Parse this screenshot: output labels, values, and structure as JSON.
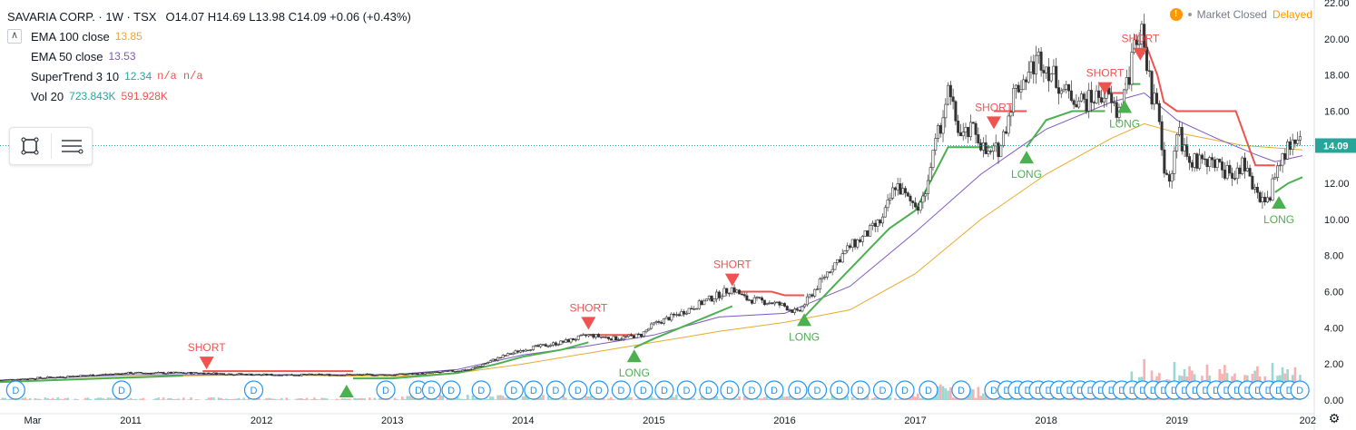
{
  "header": {
    "symbol": "SAVARIA CORP. · 1W · TSX",
    "ohlc": "O14.07  H14.69  L13.98  C14.09  +0.06 (+0.43%)"
  },
  "status": {
    "market": "Market Closed",
    "delayed": "Delayed",
    "warn": "!"
  },
  "legend": [
    {
      "name": "EMA 100 close",
      "value": "13.85",
      "color": "#e9a92f"
    },
    {
      "name": "EMA 50 close",
      "value": "13.53",
      "color": "#7e57c2"
    },
    {
      "name": "SuperTrend 3 10",
      "value": "12.34",
      "extra": "n/a  n/a",
      "color": "#26a69a",
      "extra_color": "#ef5350"
    },
    {
      "name": "Vol 20",
      "value": "723.843K",
      "extra": "591.928K",
      "color": "#26a69a",
      "extra_color": "#ef5350"
    }
  ],
  "legend_collapse": "∧",
  "chart_data": {
    "type": "line",
    "ylim": [
      0,
      22
    ],
    "y_ticks": [
      "22.00",
      "20.00",
      "18.00",
      "16.00",
      "14.00",
      "12.00",
      "10.00",
      "8.00",
      "6.00",
      "4.00",
      "2.00",
      "0.00"
    ],
    "y_tick_values": [
      22,
      20,
      18,
      16,
      14,
      12,
      10,
      8,
      6,
      4,
      2,
      0
    ],
    "x_ticks": [
      "Mar",
      "2011",
      "2012",
      "2013",
      "2014",
      "2015",
      "2016",
      "2017",
      "2018",
      "2019",
      "202"
    ],
    "x_tick_values": [
      2010.25,
      2011,
      2012,
      2013,
      2014,
      2015,
      2016,
      2017,
      2018,
      2019,
      2020
    ],
    "xlim": [
      2010.0,
      2020.05
    ],
    "last_price": "14.09",
    "last_value": 14.09,
    "series": [
      {
        "key": "price",
        "color": "#26a69a",
        "x": [
          2010.0,
          2010.5,
          2011.0,
          2011.5,
          2012.0,
          2012.5,
          2013.0,
          2013.3,
          2013.6,
          2013.8,
          2014.0,
          2014.3,
          2014.5,
          2014.7,
          2014.9,
          2015.0,
          2015.2,
          2015.4,
          2015.6,
          2015.7,
          2015.9,
          2016.0,
          2016.1,
          2016.2,
          2016.35,
          2016.5,
          2016.6,
          2016.75,
          2016.85,
          2016.95,
          2017.05,
          2017.15,
          2017.25,
          2017.35,
          2017.45,
          2017.55,
          2017.65,
          2017.75,
          2017.85,
          2017.95,
          2018.05,
          2018.15,
          2018.3,
          2018.45,
          2018.55,
          2018.65,
          2018.7,
          2018.75,
          2018.8,
          2018.85,
          2018.9,
          2018.95,
          2019.0,
          2019.1,
          2019.2,
          2019.3,
          2019.4,
          2019.5,
          2019.6,
          2019.7,
          2019.75,
          2019.85,
          2019.9,
          2019.96
        ],
        "y": [
          1.1,
          1.3,
          1.5,
          1.5,
          1.4,
          1.4,
          1.4,
          1.5,
          1.7,
          2.3,
          2.8,
          3.2,
          3.6,
          3.4,
          3.6,
          4.2,
          4.8,
          5.5,
          6.2,
          5.6,
          5.4,
          5.2,
          4.8,
          5.8,
          7.3,
          8.5,
          9.0,
          10.0,
          12.0,
          11.0,
          10.8,
          14.0,
          17.0,
          14.5,
          15.0,
          13.5,
          14.0,
          17.0,
          18.0,
          19.0,
          18.0,
          17.0,
          16.5,
          17.0,
          15.8,
          18.5,
          20.5,
          20.0,
          17.0,
          16.0,
          12.5,
          12.0,
          15.0,
          13.0,
          13.5,
          13.0,
          12.5,
          13.0,
          11.5,
          11.0,
          12.5,
          14.0,
          14.5,
          14.1
        ]
      },
      {
        "key": "ema100",
        "color": "#e9a92f",
        "x": [
          2010.0,
          2011.0,
          2012.0,
          2013.0,
          2013.5,
          2014.0,
          2014.5,
          2015.0,
          2015.5,
          2016.0,
          2016.5,
          2017.0,
          2017.5,
          2018.0,
          2018.5,
          2018.75,
          2019.0,
          2019.5,
          2019.96
        ],
        "y": [
          1.0,
          1.3,
          1.4,
          1.3,
          1.5,
          2.0,
          2.6,
          3.2,
          3.8,
          4.3,
          5.0,
          7.0,
          10.0,
          12.5,
          14.5,
          15.3,
          14.8,
          14.1,
          13.85
        ]
      },
      {
        "key": "ema50",
        "color": "#7e57c2",
        "x": [
          2010.0,
          2011.0,
          2012.0,
          2013.0,
          2013.5,
          2014.0,
          2014.5,
          2015.0,
          2015.5,
          2016.0,
          2016.5,
          2017.0,
          2017.5,
          2018.0,
          2018.5,
          2018.75,
          2019.0,
          2019.3,
          2019.6,
          2019.75,
          2019.96
        ],
        "y": [
          1.1,
          1.4,
          1.4,
          1.4,
          1.7,
          2.5,
          3.0,
          3.6,
          4.6,
          4.8,
          6.3,
          9.3,
          12.5,
          15.0,
          16.5,
          17.0,
          15.5,
          14.5,
          13.6,
          13.2,
          13.53
        ]
      },
      {
        "key": "st_up1",
        "color": "#4caf50",
        "x": [
          2010.0,
          2011.4,
          2011.4
        ],
        "y": [
          1.0,
          1.35,
          1.35
        ]
      },
      {
        "key": "st_dn1",
        "color": "#ef5350",
        "x": [
          2011.55,
          2012.7
        ],
        "y": [
          1.6,
          1.6
        ]
      },
      {
        "key": "st_up2",
        "color": "#4caf50",
        "x": [
          2012.7,
          2013.0,
          2013.5,
          2013.8,
          2014.0,
          2014.3,
          2014.5
        ],
        "y": [
          1.2,
          1.2,
          1.5,
          2.0,
          2.4,
          2.8,
          3.2
        ]
      },
      {
        "key": "st_dn2",
        "color": "#ef5350",
        "x": [
          2014.5,
          2014.85
        ],
        "y": [
          3.6,
          3.6
        ]
      },
      {
        "key": "st_up3",
        "color": "#4caf50",
        "x": [
          2014.85,
          2015.0,
          2015.2,
          2015.4,
          2015.6
        ],
        "y": [
          2.9,
          3.4,
          4.0,
          4.6,
          5.2
        ]
      },
      {
        "key": "st_dn3",
        "color": "#ef5350",
        "x": [
          2015.6,
          2015.9,
          2016.0,
          2016.15
        ],
        "y": [
          6.0,
          6.0,
          5.8,
          5.8
        ]
      },
      {
        "key": "st_up4",
        "color": "#4caf50",
        "x": [
          2016.15,
          2016.4,
          2016.6,
          2016.8,
          2017.0,
          2017.25,
          2017.5,
          2017.6
        ],
        "y": [
          4.6,
          6.5,
          8.0,
          9.5,
          10.5,
          14.0,
          14.0,
          14.0
        ]
      },
      {
        "key": "st_dn4",
        "color": "#ef5350",
        "x": [
          2017.6,
          2017.85
        ],
        "y": [
          16.0,
          16.0
        ]
      },
      {
        "key": "st_up5",
        "color": "#4caf50",
        "x": [
          2017.85,
          2018.0,
          2018.2,
          2018.45
        ],
        "y": [
          14.0,
          15.5,
          16.0,
          16.0
        ]
      },
      {
        "key": "st_dn5",
        "color": "#ef5350",
        "x": [
          2018.45,
          2018.6
        ],
        "y": [
          17.0,
          17.0
        ]
      },
      {
        "key": "st_up6",
        "color": "#4caf50",
        "x": [
          2018.6,
          2018.72
        ],
        "y": [
          17.5,
          17.5
        ]
      },
      {
        "key": "st_dn6",
        "color": "#ef5350",
        "x": [
          2018.72,
          2018.85,
          2018.9,
          2019.0,
          2019.3,
          2019.45,
          2019.6,
          2019.75
        ],
        "y": [
          20.5,
          18.0,
          16.5,
          16.0,
          16.0,
          16.0,
          13.0,
          13.0
        ]
      },
      {
        "key": "st_up7",
        "color": "#4caf50",
        "x": [
          2019.75,
          2019.85,
          2019.96
        ],
        "y": [
          11.5,
          12.0,
          12.34
        ]
      }
    ],
    "signals": [
      {
        "label": "SHORT",
        "kind": "short",
        "x": 2011.58,
        "y": 2.0
      },
      {
        "label": "SHORT",
        "kind": "short",
        "x": 2014.5,
        "y": 4.2
      },
      {
        "label": "LONG",
        "kind": "long",
        "x": 2014.85,
        "y": 2.5
      },
      {
        "label": "SHORT",
        "kind": "short",
        "x": 2015.6,
        "y": 6.6
      },
      {
        "label": "LONG",
        "kind": "long",
        "x": 2016.15,
        "y": 4.5
      },
      {
        "label": "SHORT",
        "kind": "short",
        "x": 2017.6,
        "y": 15.3
      },
      {
        "label": "LONG",
        "kind": "long",
        "x": 2017.85,
        "y": 13.5
      },
      {
        "label": "SHORT",
        "kind": "short",
        "x": 2018.45,
        "y": 17.2
      },
      {
        "label": "LONG",
        "kind": "long",
        "x": 2018.6,
        "y": 16.3
      },
      {
        "label": "SHORT",
        "kind": "short",
        "x": 2018.72,
        "y": 19.1
      },
      {
        "label": "LONG",
        "kind": "long",
        "x": 2019.78,
        "y": 11.0
      }
    ],
    "plain_long": [
      {
        "x": 2012.65
      }
    ],
    "dividend_marker": "D",
    "dividend_x": [
      2010.12,
      2010.93,
      2011.94,
      2012.95,
      2013.2,
      2013.3,
      2013.45,
      2013.68,
      2013.93,
      2014.08,
      2014.25,
      2014.42,
      2014.58,
      2014.75,
      2014.92,
      2015.08,
      2015.25,
      2015.42,
      2015.58,
      2015.75,
      2015.92,
      2016.1,
      2016.25,
      2016.42,
      2016.58,
      2016.75,
      2016.92,
      2017.1,
      2017.35,
      2017.6,
      2017.7,
      2017.78,
      2017.86,
      2017.94,
      2018.02,
      2018.1,
      2018.18,
      2018.26,
      2018.34,
      2018.42,
      2018.5,
      2018.58,
      2018.66,
      2018.74,
      2018.82,
      2018.9,
      2018.98,
      2019.06,
      2019.14,
      2019.22,
      2019.3,
      2019.38,
      2019.46,
      2019.54,
      2019.62,
      2019.7,
      2019.78,
      2019.86,
      2019.94
    ],
    "volume_scale_note": "volume bars at bottom"
  },
  "tools": {
    "rectangle": "rectangle-tool",
    "lines": "lines-tool"
  }
}
